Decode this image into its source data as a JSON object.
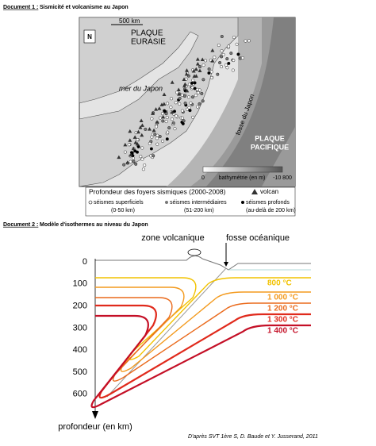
{
  "doc1": {
    "label": "Document 1 :",
    "title": "Sismicité et volcanisme au Japon"
  },
  "map": {
    "scale": "500 km",
    "north": "N",
    "plate_eurasia": [
      "PLAQUE",
      "EURASIE"
    ],
    "sea": "mer du Japon",
    "trench": "fosse du Japon",
    "plate_pacific": [
      "PLAQUE",
      "PACIFIQUE"
    ],
    "bathy_min": "0",
    "bathy_label": "bathymétrie (en m)",
    "bathy_max": "-10 800"
  },
  "legend": {
    "title": "Profondeur des foyers sismiques (2000-2008)",
    "volcano": "volcan",
    "items": [
      {
        "name": "séismes superficiels",
        "range": "(0-50 km)"
      },
      {
        "name": "séismes intermédiaires",
        "range": "(51-200 km)"
      },
      {
        "name": "séismes profonds",
        "range": "(au-delà de 200 km)"
      }
    ]
  },
  "doc2": {
    "label": "Document 2 :",
    "title": "Modèle d'isothermes au niveau du Japon"
  },
  "diagram": {
    "zone": "zone volcanique",
    "trench": "fosse océanique",
    "depth_ticks": [
      0,
      100,
      200,
      300,
      400,
      500,
      600
    ],
    "isotherms": [
      {
        "label": "800 °C",
        "color": "#f2c200"
      },
      {
        "label": "1 000 °C",
        "color": "#f39a1e"
      },
      {
        "label": "1 200 °C",
        "color": "#ea6a1c"
      },
      {
        "label": "1 300 °C",
        "color": "#e02a1c"
      },
      {
        "label": "1 400 °C",
        "color": "#c40f26"
      }
    ],
    "axis_label": "profondeur (en km)"
  },
  "credit": "D'après SVT 1ère S, D. Baude et Y. Jusserand, 2011"
}
